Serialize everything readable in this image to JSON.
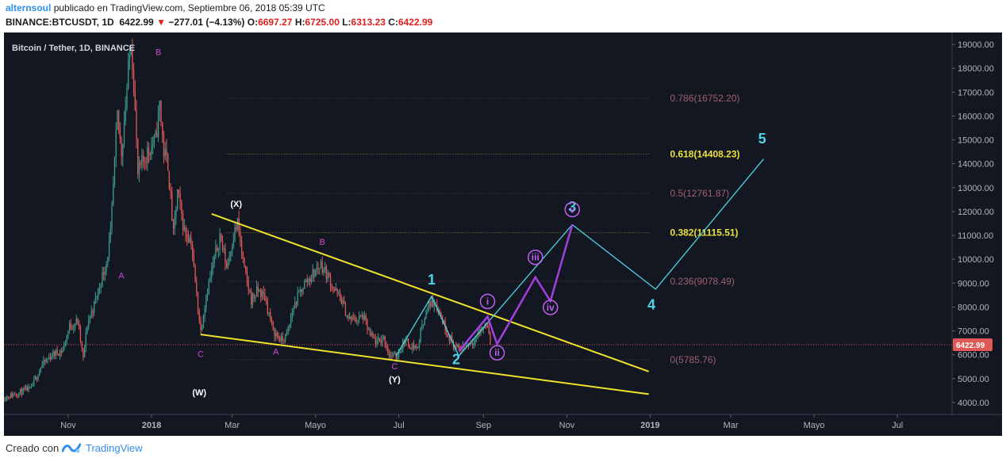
{
  "header": {
    "author": "alternsoul",
    "published": "publicado en TradingView.com, Septiembre 06, 2018 05:39 UTC",
    "symbol": "BINANCE:BTCUSDT, 1D",
    "last": "6422.99",
    "change": "−277.01 (−4.13%)",
    "o_label": "O:",
    "o_value": "6697.27",
    "h_label": "H:",
    "h_value": "6725.00",
    "l_label": "L:",
    "l_value": "6313.23",
    "c_label": "C:",
    "c_value": "6422.99"
  },
  "footer": {
    "made_with": "Creado con",
    "brand": "TradingView"
  },
  "colors": {
    "background": "#131722",
    "up": "#3d9a8c",
    "down": "#e05858",
    "trendline": "#f0e32a",
    "cyan_wave": "#4dd5e6",
    "purple_wave": "#a33fe0",
    "pink_label": "#d14ad4",
    "fib": "#a06070",
    "fib_highlight": "#ebe13c",
    "last_price": "#e05858"
  },
  "chart_data": {
    "type": "candlestick",
    "title": "Bitcoin / Tether, 1D, BINANCE",
    "y_axis": {
      "min": 3500,
      "max": 19500,
      "ticks": [
        "19000.00",
        "18000.00",
        "17000.00",
        "16000.00",
        "15000.00",
        "14000.00",
        "13000.00",
        "12000.00",
        "11000.00",
        "10000.00",
        "9000.00",
        "8000.00",
        "7000.00",
        "6000.00",
        "5000.00",
        "4000.00"
      ]
    },
    "x_axis": {
      "start": "2017-09-15",
      "end": "2019-08-10",
      "ticks": [
        {
          "label": "Nov",
          "date": "2017-11-01"
        },
        {
          "label": "2018",
          "date": "2018-01-01",
          "bold": true
        },
        {
          "label": "Mar",
          "date": "2018-03-01"
        },
        {
          "label": "Mayo",
          "date": "2018-05-01"
        },
        {
          "label": "Jul",
          "date": "2018-07-01"
        },
        {
          "label": "Sep",
          "date": "2018-09-01"
        },
        {
          "label": "Nov",
          "date": "2018-11-01"
        },
        {
          "label": "2019",
          "date": "2019-01-01",
          "bold": true
        },
        {
          "label": "Mar",
          "date": "2019-03-01"
        },
        {
          "label": "Mayo",
          "date": "2019-05-01"
        },
        {
          "label": "Jul",
          "date": "2019-07-01"
        }
      ]
    },
    "last_price": {
      "value": 6422.99,
      "label": "6422.99"
    },
    "price_path": [
      [
        "2017-09-15",
        4200
      ],
      [
        "2017-09-25",
        4400
      ],
      [
        "2017-10-05",
        4600
      ],
      [
        "2017-10-12",
        5500
      ],
      [
        "2017-10-20",
        6000
      ],
      [
        "2017-10-28",
        6200
      ],
      [
        "2017-11-02",
        7200
      ],
      [
        "2017-11-08",
        7400
      ],
      [
        "2017-11-12",
        5800
      ],
      [
        "2017-11-15",
        7300
      ],
      [
        "2017-11-20",
        8100
      ],
      [
        "2017-11-26",
        9300
      ],
      [
        "2017-11-29",
        9900
      ],
      [
        "2017-12-02",
        11000
      ],
      [
        "2017-12-07",
        16000
      ],
      [
        "2017-12-10",
        14500
      ],
      [
        "2017-12-13",
        16500
      ],
      [
        "2017-12-17",
        19200
      ],
      [
        "2017-12-19",
        17500
      ],
      [
        "2017-12-22",
        13500
      ],
      [
        "2017-12-25",
        14000
      ],
      [
        "2017-12-29",
        14500
      ],
      [
        "2018-01-04",
        15000
      ],
      [
        "2018-01-07",
        16500
      ],
      [
        "2018-01-10",
        14500
      ],
      [
        "2018-01-13",
        14000
      ],
      [
        "2018-01-17",
        11000
      ],
      [
        "2018-01-20",
        12800
      ],
      [
        "2018-01-25",
        11200
      ],
      [
        "2018-01-30",
        10800
      ],
      [
        "2018-02-02",
        9000
      ],
      [
        "2018-02-06",
        7000
      ],
      [
        "2018-02-10",
        8500
      ],
      [
        "2018-02-14",
        9500
      ],
      [
        "2018-02-20",
        11000
      ],
      [
        "2018-02-25",
        9700
      ],
      [
        "2018-03-02",
        11000
      ],
      [
        "2018-03-05",
        11500
      ],
      [
        "2018-03-10",
        9500
      ],
      [
        "2018-03-15",
        8300
      ],
      [
        "2018-03-20",
        8700
      ],
      [
        "2018-03-25",
        8400
      ],
      [
        "2018-03-31",
        7000
      ],
      [
        "2018-04-06",
        6600
      ],
      [
        "2018-04-10",
        6800
      ],
      [
        "2018-04-15",
        8000
      ],
      [
        "2018-04-22",
        8900
      ],
      [
        "2018-04-28",
        9300
      ],
      [
        "2018-05-05",
        9800
      ],
      [
        "2018-05-10",
        9300
      ],
      [
        "2018-05-15",
        8700
      ],
      [
        "2018-05-20",
        8300
      ],
      [
        "2018-05-25",
        7500
      ],
      [
        "2018-06-01",
        7500
      ],
      [
        "2018-06-05",
        7600
      ],
      [
        "2018-06-10",
        6800
      ],
      [
        "2018-06-15",
        6500
      ],
      [
        "2018-06-20",
        6700
      ],
      [
        "2018-06-24",
        6000
      ],
      [
        "2018-06-29",
        5900
      ],
      [
        "2018-07-05",
        6600
      ],
      [
        "2018-07-10",
        6400
      ],
      [
        "2018-07-15",
        6300
      ],
      [
        "2018-07-18",
        7300
      ],
      [
        "2018-07-24",
        8200
      ],
      [
        "2018-07-28",
        8200
      ],
      [
        "2018-08-01",
        7600
      ],
      [
        "2018-08-05",
        7000
      ],
      [
        "2018-08-10",
        6400
      ],
      [
        "2018-08-14",
        6200
      ],
      [
        "2018-08-18",
        6400
      ],
      [
        "2018-08-22",
        6500
      ],
      [
        "2018-08-26",
        6700
      ],
      [
        "2018-08-30",
        7000
      ],
      [
        "2018-09-04",
        7350
      ],
      [
        "2018-09-06",
        6423
      ]
    ],
    "trendlines": [
      {
        "name": "upper",
        "from": [
          "2018-02-14",
          11900
        ],
        "to": [
          "2018-12-31",
          5300
        ]
      },
      {
        "name": "lower",
        "from": [
          "2018-02-06",
          6850
        ],
        "to": [
          "2018-12-31",
          4350
        ]
      }
    ],
    "fib_levels": [
      {
        "ratio": "0.786",
        "value": 16752.2,
        "label": "0.786(16752.20)",
        "highlight": false
      },
      {
        "ratio": "0.618",
        "value": 14408.23,
        "label": "0.618(14408.23)",
        "highlight": true
      },
      {
        "ratio": "0.5",
        "value": 12761.87,
        "label": "0.5(12761.87)",
        "highlight": false
      },
      {
        "ratio": "0.382",
        "value": 11115.51,
        "label": "0.382(11115.51)",
        "highlight": true
      },
      {
        "ratio": "0.236",
        "value": 9078.49,
        "label": "0.236(9078.49)",
        "highlight": false
      },
      {
        "ratio": "0",
        "value": 5785.76,
        "label": "0(5785.76)",
        "highlight": false
      }
    ],
    "fib_start": "2018-02-25",
    "fib_end": "2019-01-01",
    "cyan_wave": [
      [
        "2018-06-29",
        5950
      ],
      [
        "2018-07-25",
        8450
      ],
      [
        "2018-08-14",
        5950
      ],
      [
        "2018-11-05",
        11450
      ],
      [
        "2019-01-05",
        8750
      ],
      [
        "2019-03-25",
        14200
      ]
    ],
    "purple_wave": [
      [
        "2018-08-14",
        6150
      ],
      [
        "2018-09-04",
        7600
      ],
      [
        "2018-09-11",
        6450
      ],
      [
        "2018-10-09",
        9250
      ],
      [
        "2018-10-20",
        8250
      ],
      [
        "2018-11-05",
        11450
      ]
    ],
    "labels": [
      {
        "text": "A",
        "date": "2017-12-10",
        "price": 9200,
        "style": "pink"
      },
      {
        "text": "B",
        "date": "2018-01-06",
        "price": 18550,
        "style": "pink"
      },
      {
        "text": "(X)",
        "date": "2018-03-04",
        "price": 12200,
        "style": "white"
      },
      {
        "text": "C",
        "date": "2018-02-06",
        "price": 5900,
        "style": "pink"
      },
      {
        "text": "(W)",
        "date": "2018-02-05",
        "price": 4300,
        "style": "white"
      },
      {
        "text": "B",
        "date": "2018-05-06",
        "price": 10600,
        "style": "pink"
      },
      {
        "text": "A",
        "date": "2018-04-02",
        "price": 6000,
        "style": "pink"
      },
      {
        "text": "C",
        "date": "2018-06-28",
        "price": 5400,
        "style": "pink"
      },
      {
        "text": "(Y)",
        "date": "2018-06-28",
        "price": 4850,
        "style": "white"
      },
      {
        "text": "1",
        "date": "2018-07-25",
        "price": 8950,
        "style": "cyan"
      },
      {
        "text": "2",
        "date": "2018-08-12",
        "price": 5600,
        "style": "cyan"
      },
      {
        "text": "3",
        "date": "2018-11-05",
        "price": 12000,
        "style": "cyan"
      },
      {
        "text": "4",
        "date": "2019-01-02",
        "price": 7900,
        "style": "cyan"
      },
      {
        "text": "5",
        "date": "2019-03-24",
        "price": 14850,
        "style": "cyan"
      },
      {
        "text": "i",
        "date": "2018-09-04",
        "price": 8100,
        "style": "circle"
      },
      {
        "text": "ii",
        "date": "2018-09-11",
        "price": 5950,
        "style": "circle"
      },
      {
        "text": "iii",
        "date": "2018-10-09",
        "price": 9950,
        "style": "circle"
      },
      {
        "text": "iv",
        "date": "2018-10-20",
        "price": 7850,
        "style": "circle"
      },
      {
        "text": "v",
        "date": "2018-11-05",
        "price": 11950,
        "style": "circle"
      }
    ]
  }
}
